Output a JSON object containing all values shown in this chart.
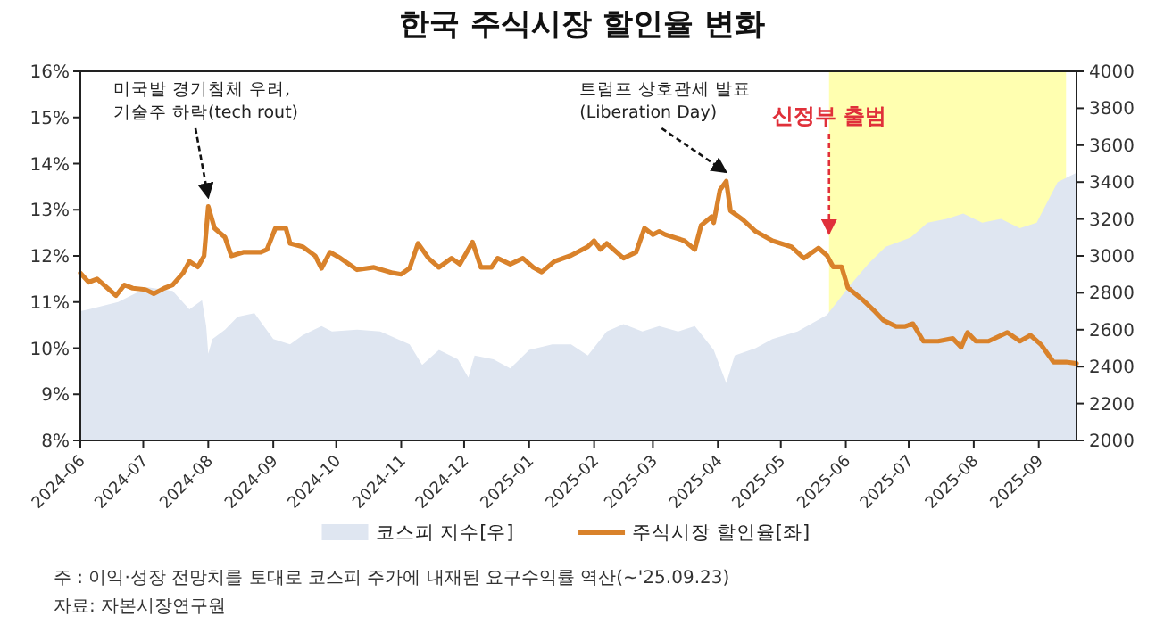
{
  "chart_data": {
    "type": "line",
    "title": "한국 주식시장 할인율 변화",
    "xlim": [
      "2024-06-01",
      "2025-09-19"
    ],
    "xticks": [
      "2024-06",
      "2024-07",
      "2024-08",
      "2024-09",
      "2024-10",
      "2024-11",
      "2024-12",
      "2025-01",
      "2025-02",
      "2025-03",
      "2025-04",
      "2025-05",
      "2025-06",
      "2025-07",
      "2025-08",
      "2025-09"
    ],
    "ylim": [
      8,
      16
    ],
    "yticks": [
      {
        "value": 8,
        "label": "8%"
      },
      {
        "value": 9,
        "label": "9%"
      },
      {
        "value": 10,
        "label": "10%"
      },
      {
        "value": 11,
        "label": "11%"
      },
      {
        "value": 12,
        "label": "12%"
      },
      {
        "value": 13,
        "label": "13%"
      },
      {
        "value": 14,
        "label": "14%"
      },
      {
        "value": 15,
        "label": "15%"
      },
      {
        "value": 16,
        "label": "16%"
      }
    ],
    "y2lim": [
      2000,
      4000
    ],
    "y2ticks": [
      2000,
      2200,
      2400,
      2600,
      2800,
      3000,
      3200,
      3400,
      3600,
      3800,
      4000
    ],
    "grid": false,
    "legend": "bottom",
    "bands": [
      {
        "axis": "x",
        "from": "2025-05-24",
        "to": "2025-09-14",
        "label": "신정부 출범",
        "color": "#ffffb0"
      }
    ],
    "annotations": [
      {
        "text": "미국발 경기침체 우려,\n기술주 하락(tech rout)",
        "x": "2024-08-01",
        "y": 13.07
      },
      {
        "text": "트럼프 상호관세 발표\n(Liberation Day)",
        "x": "2025-04-05",
        "y": 13.62
      },
      "주   : 이익·성장 전망치를 토대로 코스피 주가에 내재된 요구수익률 역산(~'25.09.23)",
      "자료: 자본시장연구원"
    ],
    "series": [
      {
        "name": "코스피 지수[우]",
        "type": "area",
        "axis": "y2",
        "color": "#dfe6f1",
        "x": [
          "2024-06-01",
          "2024-06-05",
          "2024-06-19",
          "2024-07-03",
          "2024-07-15",
          "2024-07-23",
          "2024-07-29",
          "2024-07-31",
          "2024-08-01",
          "2024-08-03",
          "2024-08-09",
          "2024-08-15",
          "2024-08-23",
          "2024-09-01",
          "2024-09-09",
          "2024-09-15",
          "2024-09-24",
          "2024-09-29",
          "2024-10-11",
          "2024-10-22",
          "2024-11-05",
          "2024-11-11",
          "2024-11-19",
          "2024-11-28",
          "2024-12-03",
          "2024-12-06",
          "2024-12-15",
          "2024-12-23",
          "2025-01-01",
          "2025-01-12",
          "2025-01-21",
          "2025-01-29",
          "2025-02-07",
          "2025-02-15",
          "2025-02-24",
          "2025-03-04",
          "2025-03-13",
          "2025-03-21",
          "2025-03-30",
          "2025-04-05",
          "2025-04-09",
          "2025-04-19",
          "2025-04-27",
          "2025-05-09",
          "2025-05-23",
          "2025-06-03",
          "2025-06-12",
          "2025-06-20",
          "2025-07-02",
          "2025-07-10",
          "2025-07-19",
          "2025-07-27",
          "2025-08-05",
          "2025-08-14",
          "2025-08-23",
          "2025-08-31",
          "2025-09-05",
          "2025-09-10",
          "2025-09-19"
        ],
        "values": [
          2700,
          2710,
          2750,
          2830,
          2810,
          2710,
          2760,
          2620,
          2470,
          2550,
          2600,
          2670,
          2690,
          2550,
          2520,
          2570,
          2620,
          2590,
          2600,
          2590,
          2520,
          2410,
          2490,
          2440,
          2340,
          2460,
          2440,
          2390,
          2490,
          2520,
          2520,
          2460,
          2590,
          2630,
          2590,
          2620,
          2590,
          2620,
          2490,
          2310,
          2460,
          2500,
          2550,
          2590,
          2680,
          2840,
          2960,
          3050,
          3100,
          3180,
          3200,
          3230,
          3180,
          3200,
          3150,
          3180,
          3290,
          3400,
          3450
        ]
      },
      {
        "name": "주식시장 할인율[좌]",
        "color": "#d9822b",
        "x": [
          "2024-06-01",
          "2024-06-05",
          "2024-06-09",
          "2024-06-14",
          "2024-06-18",
          "2024-06-22",
          "2024-06-26",
          "2024-07-02",
          "2024-07-06",
          "2024-07-11",
          "2024-07-15",
          "2024-07-20",
          "2024-07-23",
          "2024-07-27",
          "2024-07-30",
          "2024-08-01",
          "2024-08-04",
          "2024-08-09",
          "2024-08-12",
          "2024-08-18",
          "2024-08-26",
          "2024-08-29",
          "2024-09-02",
          "2024-09-07",
          "2024-09-09",
          "2024-09-15",
          "2024-09-21",
          "2024-09-24",
          "2024-09-28",
          "2024-10-03",
          "2024-10-11",
          "2024-10-19",
          "2024-10-28",
          "2024-11-01",
          "2024-11-05",
          "2024-11-09",
          "2024-11-14",
          "2024-11-19",
          "2024-11-25",
          "2024-11-29",
          "2024-12-05",
          "2024-12-09",
          "2024-12-14",
          "2024-12-17",
          "2024-12-23",
          "2024-12-29",
          "2025-01-03",
          "2025-01-07",
          "2025-01-13",
          "2025-01-21",
          "2025-01-29",
          "2025-02-01",
          "2025-02-04",
          "2025-02-07",
          "2025-02-15",
          "2025-02-21",
          "2025-02-25",
          "2025-03-01",
          "2025-03-04",
          "2025-03-07",
          "2025-03-16",
          "2025-03-21",
          "2025-03-24",
          "2025-03-29",
          "2025-03-30",
          "2025-04-02",
          "2025-04-05",
          "2025-04-07",
          "2025-04-13",
          "2025-04-19",
          "2025-04-27",
          "2025-05-06",
          "2025-05-12",
          "2025-05-19",
          "2025-05-23",
          "2025-05-26",
          "2025-05-30",
          "2025-06-02",
          "2025-06-09",
          "2025-06-15",
          "2025-06-19",
          "2025-06-25",
          "2025-06-29",
          "2025-07-03",
          "2025-07-08",
          "2025-07-15",
          "2025-07-22",
          "2025-07-26",
          "2025-07-29",
          "2025-08-02",
          "2025-08-08",
          "2025-08-17",
          "2025-08-23",
          "2025-08-28",
          "2025-09-02",
          "2025-09-08",
          "2025-09-14",
          "2025-09-19"
        ],
        "values": [
          11.63,
          11.43,
          11.5,
          11.3,
          11.14,
          11.37,
          11.3,
          11.27,
          11.18,
          11.3,
          11.37,
          11.63,
          11.88,
          11.76,
          12.0,
          13.07,
          12.6,
          12.4,
          12.0,
          12.08,
          12.08,
          12.14,
          12.6,
          12.6,
          12.27,
          12.2,
          12.0,
          11.73,
          12.08,
          11.95,
          11.7,
          11.75,
          11.63,
          11.6,
          11.73,
          12.27,
          11.95,
          11.75,
          11.95,
          11.82,
          12.3,
          11.75,
          11.75,
          11.95,
          11.82,
          11.95,
          11.75,
          11.65,
          11.88,
          12.01,
          12.2,
          12.33,
          12.14,
          12.27,
          11.95,
          12.08,
          12.6,
          12.46,
          12.53,
          12.46,
          12.33,
          12.14,
          12.66,
          12.85,
          12.72,
          13.43,
          13.62,
          12.98,
          12.78,
          12.53,
          12.33,
          12.2,
          11.95,
          12.17,
          12.01,
          11.76,
          11.76,
          11.31,
          11.05,
          10.79,
          10.6,
          10.47,
          10.47,
          10.53,
          10.15,
          10.15,
          10.21,
          10.02,
          10.34,
          10.15,
          10.15,
          10.34,
          10.15,
          10.28,
          10.08,
          9.7,
          9.7,
          9.67
        ]
      }
    ]
  }
}
